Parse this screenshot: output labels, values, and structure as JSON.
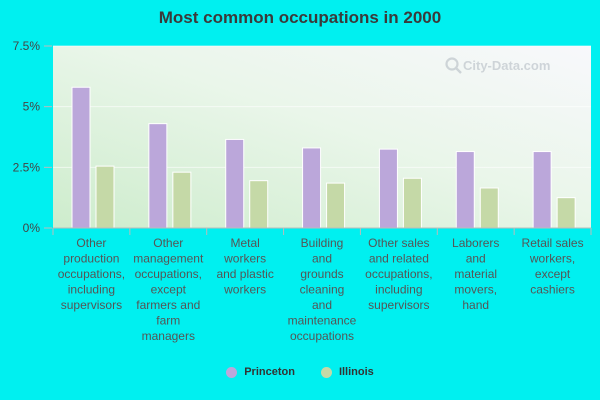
{
  "chart_data": {
    "type": "bar",
    "title": "Most common occupations in 2000",
    "categories": [
      "Other production occupations, including supervisors",
      "Other management occupations, except farmers and farm managers",
      "Metal workers and plastic workers",
      "Building and grounds cleaning and maintenance occupations",
      "Other sales and related occupations, including supervisors",
      "Laborers and material movers, hand",
      "Retail sales workers, except cashiers"
    ],
    "category_lines": [
      [
        "Other",
        "production",
        "occupations,",
        "including",
        "supervisors"
      ],
      [
        "Other",
        "management",
        "occupations,",
        "except",
        "farmers and",
        "farm",
        "managers"
      ],
      [
        "Metal",
        "workers",
        "and plastic",
        "workers"
      ],
      [
        "Building",
        "and",
        "grounds",
        "cleaning",
        "and",
        "maintenance",
        "occupations"
      ],
      [
        "Other sales",
        "and related",
        "occupations,",
        "including",
        "supervisors"
      ],
      [
        "Laborers",
        "and",
        "material",
        "movers,",
        "hand"
      ],
      [
        "Retail sales",
        "workers,",
        "except",
        "cashiers"
      ]
    ],
    "series": [
      {
        "name": "Princeton",
        "color": "#bba7da",
        "values": [
          5.8,
          4.3,
          3.65,
          3.3,
          3.25,
          3.15,
          3.15
        ]
      },
      {
        "name": "Illinois",
        "color": "#c5d9a7",
        "values": [
          2.55,
          2.3,
          1.95,
          1.85,
          2.05,
          1.65,
          1.25
        ]
      }
    ],
    "ylim": [
      0,
      7.5
    ],
    "yticks": [
      0,
      2.5,
      5,
      7.5
    ],
    "ytick_labels": [
      "0%",
      "2.5%",
      "5%",
      "7.5%"
    ],
    "legend_position": "bottom-center",
    "grid": false
  },
  "watermark": "City-Data.com"
}
